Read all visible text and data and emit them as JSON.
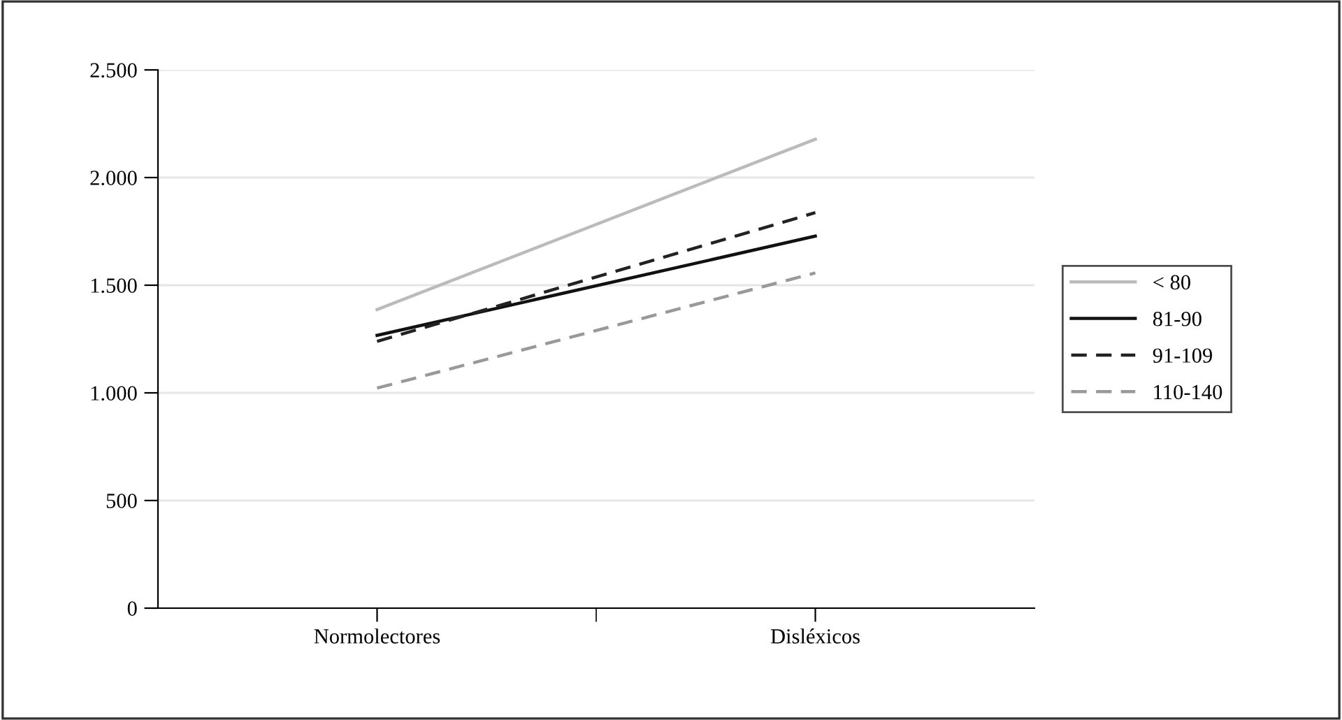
{
  "chart_data": {
    "type": "line",
    "categories": [
      "Normolectores",
      "Disléxicos"
    ],
    "series": [
      {
        "name": "< 80",
        "color": "#bbbbbb",
        "line_style": "solid",
        "values": [
          1387,
          2178
        ]
      },
      {
        "name": "81-90",
        "color": "#111111",
        "line_style": "solid",
        "values": [
          1267,
          1728
        ]
      },
      {
        "name": "91-109",
        "color": "#222222",
        "line_style": "dashed",
        "values": [
          1239,
          1837
        ]
      },
      {
        "name": "110-140",
        "color": "#999999",
        "line_style": "dashed",
        "values": [
          1022,
          1557
        ]
      }
    ],
    "ylim": [
      0,
      2500
    ],
    "yticks": [
      {
        "value": 0,
        "label": "0"
      },
      {
        "value": 500,
        "label": "500"
      },
      {
        "value": 1000,
        "label": "1.000"
      },
      {
        "value": 1500,
        "label": "1.500"
      },
      {
        "value": 2000,
        "label": "2.000"
      },
      {
        "value": 2500,
        "label": "2.500"
      }
    ],
    "grid": "y",
    "legend": "right",
    "marker": "none"
  }
}
